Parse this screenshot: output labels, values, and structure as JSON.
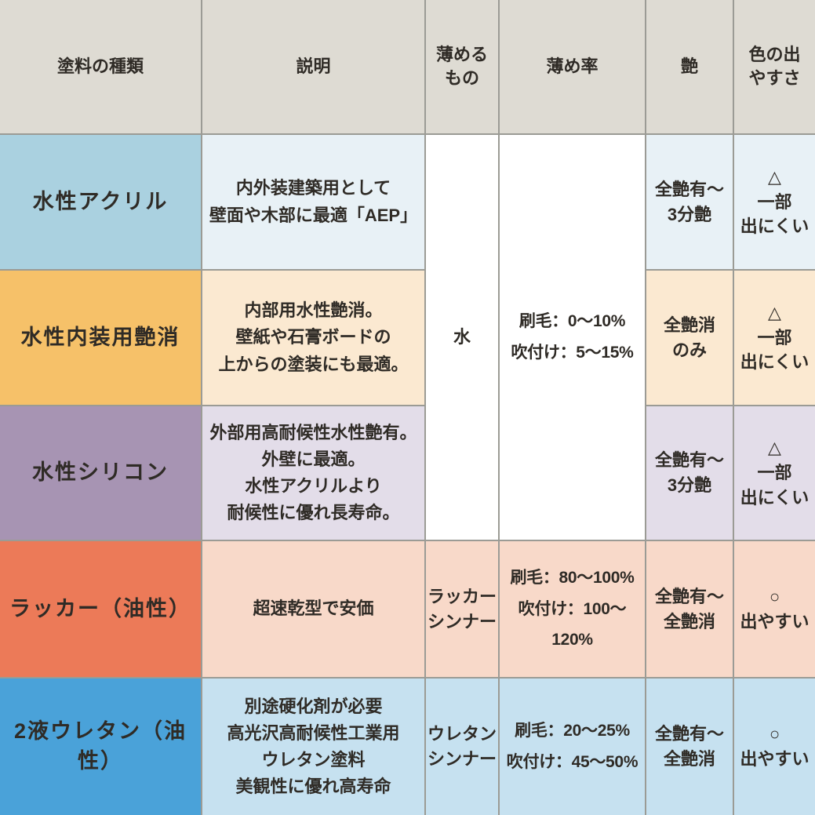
{
  "colors": {
    "grid_line": "#9b9b95",
    "header_bg": "#dedbd3",
    "white_cell": "#ffffff",
    "text": "#2f2b26"
  },
  "table": {
    "headers": {
      "paint_type": "塗料の種類",
      "description": "説明",
      "thinner": "薄める\nもの",
      "dilution_rate": "薄め率",
      "gloss": "艶",
      "color_ease": "色の出\nやすさ"
    },
    "merged": {
      "thinner_rows1to3": "水",
      "ratio_rows1to3": "刷毛：0〜10%\n吹付け：5〜15%"
    },
    "rows": [
      {
        "name": "水性アクリル",
        "description": "内外装建築用として\n壁面や木部に最適「AEP」",
        "gloss": "全艶有〜\n3分艶",
        "color_ease": "△\n一部\n出にくい",
        "name_bg": "#aad1e0",
        "tint_bg": "#e8f1f6"
      },
      {
        "name": "水性内装用艶消",
        "description": "内部用水性艶消。\n壁紙や石膏ボードの\n上からの塗装にも最適。",
        "gloss": "全艶消\nのみ",
        "color_ease": "△\n一部\n出にくい",
        "name_bg": "#f6c169",
        "tint_bg": "#fbe9d1"
      },
      {
        "name": "水性シリコン",
        "description": "外部用高耐候性水性艶有。\n外壁に最適。\n水性アクリルより\n耐候性に優れ長寿命。",
        "gloss": "全艶有〜\n3分艶",
        "color_ease": "△\n一部\n出にくい",
        "name_bg": "#a794b3",
        "tint_bg": "#e3dde9"
      },
      {
        "name": "ラッカー（油性）",
        "description": "超速乾型で安価",
        "thinner": "ラッカー\nシンナー",
        "ratio": "刷毛：80〜100%\n吹付け：100〜120%",
        "gloss": "全艶有〜\n全艶消",
        "color_ease": "○\n出やすい",
        "name_bg": "#ec7a58",
        "tint_bg": "#f8d9c9"
      },
      {
        "name": "2液ウレタン（油性）",
        "description": "別途硬化剤が必要\n高光沢高耐候性工業用\nウレタン塗料\n美観性に優れ高寿命",
        "thinner": "ウレタン\nシンナー",
        "ratio": "刷毛：20〜25%\n吹付け：45〜50%",
        "gloss": "全艶有〜\n全艶消",
        "color_ease": "○\n出やすい",
        "name_bg": "#4aa2d9",
        "tint_bg": "#c6e1f0"
      }
    ]
  }
}
